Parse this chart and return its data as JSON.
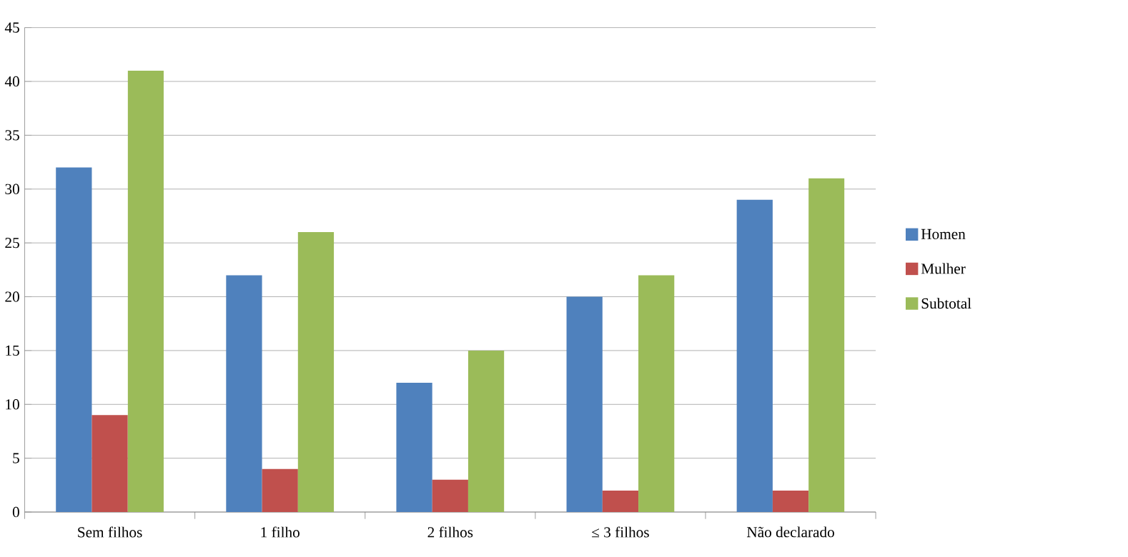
{
  "chart_data": {
    "type": "bar",
    "categories": [
      "Sem filhos",
      "1 filho",
      "2 filhos",
      "≤ 3 filhos",
      "Não declarado"
    ],
    "series": [
      {
        "name": "Homen",
        "color": "#4f81bd",
        "values": [
          32,
          22,
          12,
          20,
          29
        ]
      },
      {
        "name": "Mulher",
        "color": "#c0504d",
        "values": [
          9,
          4,
          3,
          2,
          2
        ]
      },
      {
        "name": "Subtotal",
        "color": "#9bbb59",
        "values": [
          41,
          26,
          15,
          22,
          31
        ]
      }
    ],
    "ylim": [
      0,
      45
    ],
    "yticks": [
      0,
      5,
      10,
      15,
      20,
      25,
      30,
      35,
      40,
      45
    ],
    "grid": "y",
    "legend": "right"
  }
}
